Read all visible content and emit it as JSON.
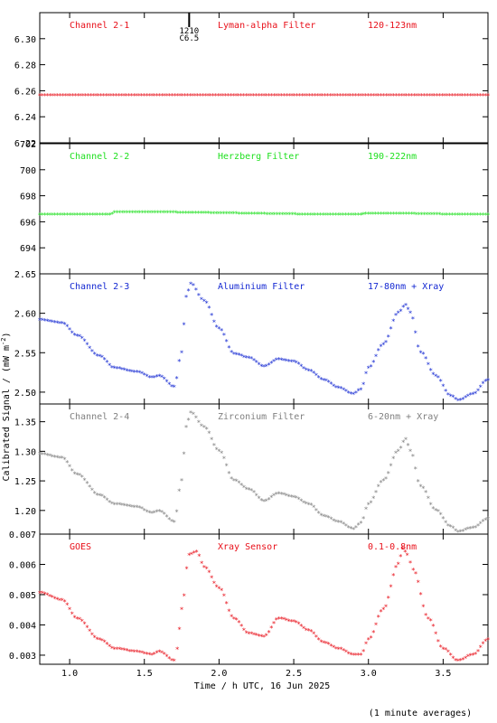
{
  "figure": {
    "ylabel": "Calibrated Signal / (mW m",
    "ylabel_sup": "-2",
    "ylabel_end": ")",
    "xlabel": "Time / h UTC, 16 Jun 2025",
    "footnote": "(1 minute averages)",
    "flare_marker": {
      "time": 1.8,
      "labels": [
        "1210",
        "C6.5"
      ]
    }
  },
  "chart_data": [
    {
      "type": "scatter",
      "channel": "Channel 2-1",
      "filter": "Lyman-alpha Filter",
      "band": "120-123nm",
      "color": "#e8101a",
      "xlim": [
        0.8,
        3.8
      ],
      "ylim": [
        6.22,
        6.32
      ],
      "yticks": [
        "6.22",
        "6.24",
        "6.26",
        "6.28",
        "6.30"
      ],
      "x": [
        0.8,
        3.8
      ],
      "y": [
        6.256,
        6.256
      ]
    },
    {
      "type": "scatter",
      "channel": "Channel 2-2",
      "filter": "Herzberg Filter",
      "band": "190-222nm",
      "color": "#20e020",
      "xlim": [
        0.8,
        3.8
      ],
      "ylim": [
        692,
        702
      ],
      "yticks": [
        "694",
        "696",
        "698",
        "700",
        "702"
      ],
      "x": [
        0.8,
        1.27,
        1.3,
        2.95,
        2.98,
        3.8
      ],
      "y": [
        696.5,
        696.5,
        696.7,
        696.5,
        696.6,
        696.5
      ]
    },
    {
      "type": "scatter",
      "channel": "Channel 2-3",
      "filter": "Aluminium Filter",
      "band": "17-80nm + Xray",
      "color": "#1428d2",
      "xlim": [
        0.8,
        3.8
      ],
      "ylim": [
        2.485,
        2.65
      ],
      "yticks": [
        "2.50",
        "2.55",
        "2.60",
        "2.65"
      ],
      "x": [
        0.8,
        0.95,
        1.05,
        1.2,
        1.3,
        1.45,
        1.55,
        1.6,
        1.7,
        1.75,
        1.78,
        1.81,
        1.9,
        2.0,
        2.1,
        2.2,
        2.3,
        2.4,
        2.5,
        2.6,
        2.7,
        2.8,
        2.9,
        2.95,
        3.0,
        3.1,
        3.2,
        3.25,
        3.28,
        3.35,
        3.45,
        3.55,
        3.6,
        3.7,
        3.8
      ],
      "y": [
        2.591,
        2.587,
        2.571,
        2.545,
        2.53,
        2.525,
        2.518,
        2.52,
        2.506,
        2.55,
        2.62,
        2.637,
        2.615,
        2.58,
        2.548,
        2.543,
        2.532,
        2.541,
        2.538,
        2.527,
        2.515,
        2.505,
        2.497,
        2.503,
        2.53,
        2.56,
        2.6,
        2.61,
        2.6,
        2.55,
        2.52,
        2.495,
        2.489,
        2.497,
        2.515
      ]
    },
    {
      "type": "scatter",
      "channel": "Channel 2-4",
      "filter": "Zirconium Filter",
      "band": "6-20nm + Xray",
      "color": "#808080",
      "xlim": [
        0.8,
        3.8
      ],
      "ylim": [
        1.16,
        1.38
      ],
      "yticks": [
        "1.20",
        "1.25",
        "1.30",
        "1.35"
      ],
      "x": [
        0.8,
        0.95,
        1.05,
        1.2,
        1.3,
        1.45,
        1.55,
        1.6,
        1.7,
        1.75,
        1.78,
        1.81,
        1.9,
        2.0,
        2.1,
        2.2,
        2.3,
        2.4,
        2.5,
        2.6,
        2.7,
        2.8,
        2.9,
        2.95,
        3.0,
        3.1,
        3.2,
        3.25,
        3.28,
        3.35,
        3.45,
        3.55,
        3.6,
        3.7,
        3.8
      ],
      "y": [
        1.295,
        1.288,
        1.26,
        1.225,
        1.21,
        1.205,
        1.195,
        1.198,
        1.18,
        1.25,
        1.34,
        1.365,
        1.34,
        1.3,
        1.25,
        1.235,
        1.215,
        1.228,
        1.222,
        1.21,
        1.19,
        1.18,
        1.168,
        1.178,
        1.21,
        1.25,
        1.3,
        1.32,
        1.3,
        1.24,
        1.2,
        1.172,
        1.163,
        1.17,
        1.185
      ]
    },
    {
      "type": "scatter",
      "channel": "GOES",
      "filter": "Xray Sensor",
      "band": "0.1-0.8nm",
      "color": "#e8101a",
      "xlim": [
        0.8,
        3.8
      ],
      "ylim": [
        0.0027,
        0.007
      ],
      "yticks": [
        "0.003",
        "0.004",
        "0.005",
        "0.006",
        "0.007"
      ],
      "x": [
        0.8,
        0.95,
        1.05,
        1.2,
        1.3,
        1.45,
        1.55,
        1.6,
        1.7,
        1.72,
        1.75,
        1.8,
        1.85,
        1.9,
        2.0,
        2.1,
        2.2,
        2.3,
        2.4,
        2.5,
        2.6,
        2.7,
        2.8,
        2.9,
        2.95,
        3.0,
        3.1,
        3.2,
        3.23,
        3.26,
        3.3,
        3.4,
        3.5,
        3.6,
        3.7,
        3.8
      ],
      "y": [
        0.00505,
        0.0048,
        0.0042,
        0.0035,
        0.0032,
        0.0031,
        0.003,
        0.0031,
        0.0028,
        0.0032,
        0.0045,
        0.0063,
        0.0064,
        0.0059,
        0.0052,
        0.0042,
        0.0037,
        0.0036,
        0.0042,
        0.0041,
        0.0038,
        0.0034,
        0.0032,
        0.003,
        0.003,
        0.0035,
        0.0045,
        0.006,
        0.0065,
        0.0063,
        0.0058,
        0.0042,
        0.0032,
        0.0028,
        0.003,
        0.0035
      ]
    }
  ],
  "xticks": [
    "1.0",
    "1.5",
    "2.0",
    "2.5",
    "3.0",
    "3.5"
  ],
  "xtick_values": [
    1.0,
    1.5,
    2.0,
    2.5,
    3.0,
    3.5
  ]
}
